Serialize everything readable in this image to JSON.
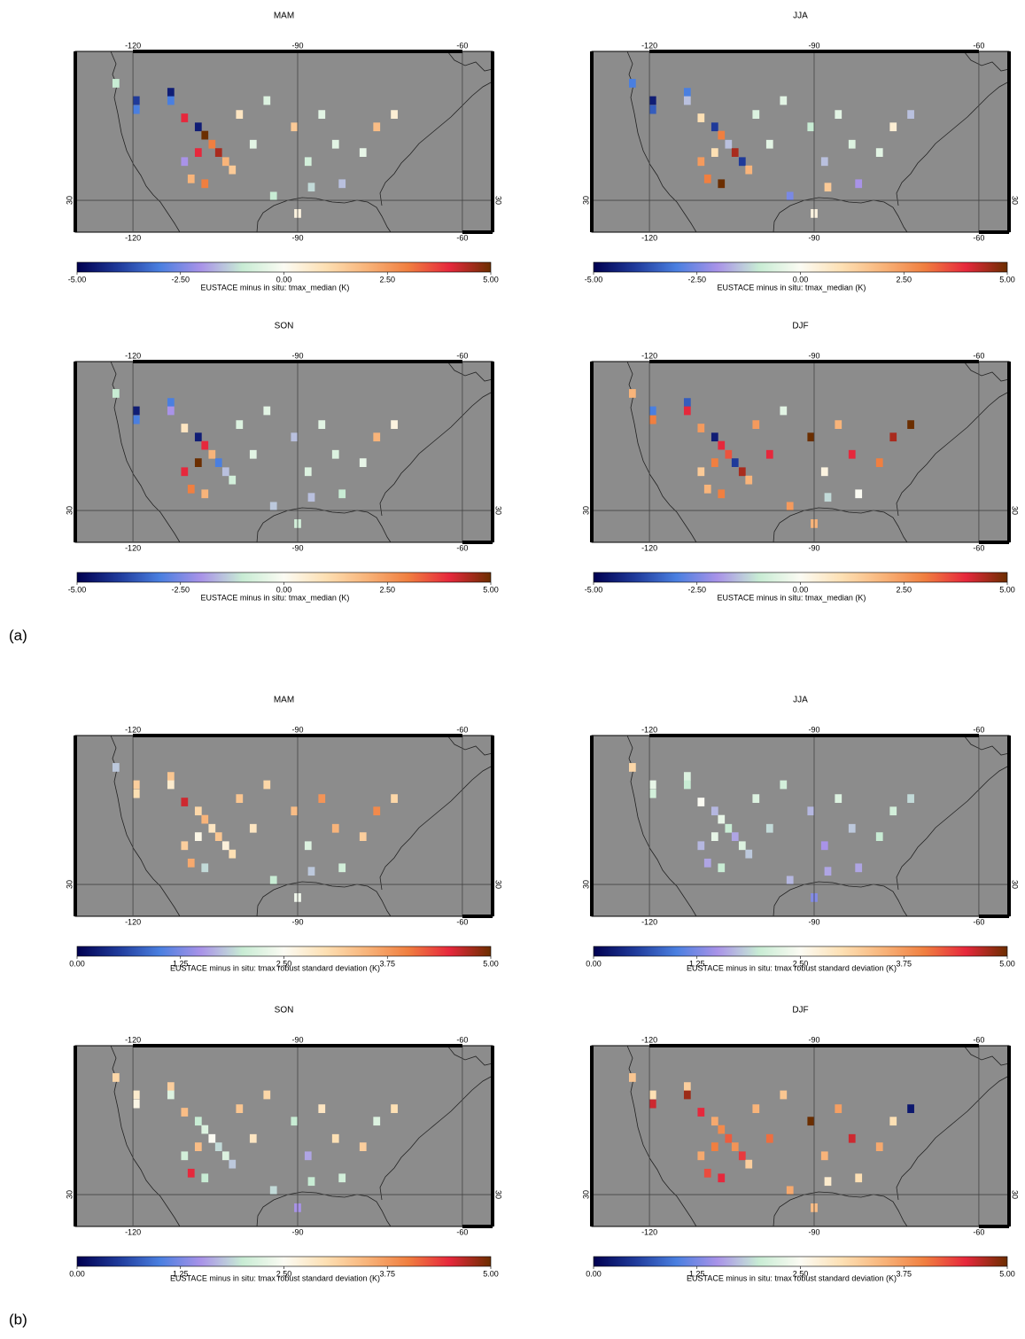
{
  "panel_labels": [
    "(a)",
    "(b)"
  ],
  "chart_data": [
    {
      "type": "grid_map",
      "title": "MAM",
      "colorbar_label": "EUSTACE minus in situ: tmax_median (K)",
      "xlim": [
        -130.5,
        -54.5
      ],
      "ylim": [
        25.4,
        51.5
      ],
      "xticks": [
        -120,
        -90,
        -60
      ],
      "yticks": [
        30
      ],
      "clim": [
        -5,
        5
      ],
      "cticks": [
        {
          "value": -5,
          "label": "-5.00"
        },
        {
          "value": -2.5,
          "label": "-2.50"
        },
        {
          "value": 0,
          "label": "0.00"
        },
        {
          "value": 2.5,
          "label": "2.50"
        },
        {
          "value": 5,
          "label": "5.00"
        }
      ],
      "colormap": [
        "#000050",
        "#1f3a9a",
        "#4a7fe0",
        "#a993e8",
        "#c8ecd4",
        "#fbfbf3",
        "#fde0b4",
        "#f8b47a",
        "#f07f40",
        "#e6283c",
        "#6b2e00"
      ],
      "x": [
        -123.1,
        -119.4,
        -119.4,
        -113.1,
        -113.1,
        -110.6,
        -108.1,
        -106.9,
        -105.6,
        -104.4,
        -103.1,
        -101.9,
        -108.1,
        -110.6,
        -109.4,
        -106.9,
        -100.6,
        -98.1,
        -95.6,
        -90.6,
        -88.1,
        -85.6,
        -83.1,
        -81.9,
        -78.1,
        -75.6,
        -72.4,
        -87.5,
        -90.0,
        -94.4
      ],
      "y": [
        46.9,
        44.4,
        43.1,
        45.6,
        44.4,
        41.9,
        40.6,
        39.4,
        38.1,
        36.9,
        35.6,
        34.4,
        36.9,
        35.6,
        33.1,
        32.4,
        42.4,
        38.1,
        44.4,
        40.6,
        35.6,
        42.4,
        38.1,
        32.4,
        36.9,
        40.6,
        42.4,
        31.9,
        28.1,
        30.6
      ],
      "values": [
        -1,
        -4,
        -3,
        -4.5,
        -3,
        4,
        -4.5,
        5,
        3,
        4.5,
        2,
        1.5,
        4,
        -2,
        2,
        3,
        0.8,
        -0.5,
        -0.6,
        1.5,
        -0.8,
        -0.5,
        -0.5,
        -1.5,
        -0.4,
        1.8,
        0.5,
        -1.2,
        0.3,
        -1
      ]
    },
    {
      "type": "grid_map",
      "title": "JJA",
      "colorbar_label": "EUSTACE minus in situ: tmax_median (K)",
      "xlim": [
        -130.5,
        -54.5
      ],
      "ylim": [
        25.4,
        51.5
      ],
      "xticks": [
        -120,
        -90,
        -60
      ],
      "yticks": [
        30
      ],
      "clim": [
        -5,
        5
      ],
      "cticks": [
        {
          "value": -5,
          "label": "-5.00"
        },
        {
          "value": -2.5,
          "label": "-2.50"
        },
        {
          "value": 0,
          "label": "0.00"
        },
        {
          "value": 2.5,
          "label": "2.50"
        },
        {
          "value": 5,
          "label": "5.00"
        }
      ],
      "colormap": [
        "#000050",
        "#1f3a9a",
        "#4a7fe0",
        "#a993e8",
        "#c8ecd4",
        "#fbfbf3",
        "#fde0b4",
        "#f8b47a",
        "#f07f40",
        "#e6283c",
        "#6b2e00"
      ],
      "x": [
        -123.1,
        -119.4,
        -119.4,
        -113.1,
        -113.1,
        -110.6,
        -108.1,
        -106.9,
        -105.6,
        -104.4,
        -103.1,
        -101.9,
        -108.1,
        -110.6,
        -109.4,
        -106.9,
        -100.6,
        -98.1,
        -95.6,
        -90.6,
        -88.1,
        -85.6,
        -83.1,
        -81.9,
        -78.1,
        -75.6,
        -72.4,
        -87.5,
        -90.0,
        -94.4
      ],
      "y": [
        46.9,
        44.4,
        43.1,
        45.6,
        44.4,
        41.9,
        40.6,
        39.4,
        38.1,
        36.9,
        35.6,
        34.4,
        36.9,
        35.6,
        33.1,
        32.4,
        42.4,
        38.1,
        44.4,
        40.6,
        35.6,
        42.4,
        38.1,
        32.4,
        36.9,
        40.6,
        42.4,
        31.9,
        28.1,
        30.6
      ],
      "values": [
        -3,
        -4.5,
        -3.5,
        -3,
        -1.5,
        1,
        -4,
        3,
        -1.5,
        4.5,
        -4,
        2,
        1,
        2.5,
        3,
        5,
        -0.6,
        -0.5,
        -0.5,
        -1,
        -1.5,
        -0.5,
        -0.6,
        -2,
        -0.5,
        0.5,
        -1.5,
        1.5,
        0.3,
        -2.5
      ]
    },
    {
      "type": "grid_map",
      "title": "SON",
      "colorbar_label": "EUSTACE minus in situ: tmax_median (K)",
      "xlim": [
        -130.5,
        -54.5
      ],
      "ylim": [
        25.4,
        51.5
      ],
      "xticks": [
        -120,
        -90,
        -60
      ],
      "yticks": [
        30
      ],
      "clim": [
        -5,
        5
      ],
      "cticks": [
        {
          "value": -5,
          "label": "-5.00"
        },
        {
          "value": -2.5,
          "label": "-2.50"
        },
        {
          "value": 0,
          "label": "0.00"
        },
        {
          "value": 2.5,
          "label": "2.50"
        },
        {
          "value": 5,
          "label": "5.00"
        }
      ],
      "colormap": [
        "#000050",
        "#1f3a9a",
        "#4a7fe0",
        "#a993e8",
        "#c8ecd4",
        "#fbfbf3",
        "#fde0b4",
        "#f8b47a",
        "#f07f40",
        "#e6283c",
        "#6b2e00"
      ],
      "x": [
        -123.1,
        -119.4,
        -119.4,
        -113.1,
        -113.1,
        -110.6,
        -108.1,
        -106.9,
        -105.6,
        -104.4,
        -103.1,
        -101.9,
        -108.1,
        -110.6,
        -109.4,
        -106.9,
        -100.6,
        -98.1,
        -95.6,
        -90.6,
        -88.1,
        -85.6,
        -83.1,
        -81.9,
        -78.1,
        -75.6,
        -72.4,
        -87.5,
        -90.0,
        -94.4
      ],
      "y": [
        46.9,
        44.4,
        43.1,
        45.6,
        44.4,
        41.9,
        40.6,
        39.4,
        38.1,
        36.9,
        35.6,
        34.4,
        36.9,
        35.6,
        33.1,
        32.4,
        42.4,
        38.1,
        44.4,
        40.6,
        35.6,
        42.4,
        38.1,
        32.4,
        36.9,
        40.6,
        42.4,
        31.9,
        28.1,
        30.6
      ],
      "values": [
        -1,
        -4.5,
        -3,
        -3,
        -2,
        0.8,
        -4.5,
        4,
        2,
        -3,
        -1.5,
        -0.8,
        5,
        4,
        3,
        2,
        -0.6,
        -0.5,
        -0.5,
        -1.5,
        -0.6,
        -0.5,
        -0.6,
        -1,
        -0.4,
        2,
        0.3,
        -1.5,
        -0.8,
        -1.4
      ]
    },
    {
      "type": "grid_map",
      "title": "DJF",
      "colorbar_label": "EUSTACE minus in situ: tmax_median (K)",
      "xlim": [
        -130.5,
        -54.5
      ],
      "ylim": [
        25.4,
        51.5
      ],
      "xticks": [
        -120,
        -90,
        -60
      ],
      "yticks": [
        30
      ],
      "clim": [
        -5,
        5
      ],
      "cticks": [
        {
          "value": -5,
          "label": "-5.00"
        },
        {
          "value": -2.5,
          "label": "-2.50"
        },
        {
          "value": 0,
          "label": "0.00"
        },
        {
          "value": 2.5,
          "label": "2.50"
        },
        {
          "value": 5,
          "label": "5.00"
        }
      ],
      "colormap": [
        "#000050",
        "#1f3a9a",
        "#4a7fe0",
        "#a993e8",
        "#c8ecd4",
        "#fbfbf3",
        "#fde0b4",
        "#f8b47a",
        "#f07f40",
        "#e6283c",
        "#6b2e00"
      ],
      "x": [
        -123.1,
        -119.4,
        -119.4,
        -113.1,
        -113.1,
        -110.6,
        -108.1,
        -106.9,
        -105.6,
        -104.4,
        -103.1,
        -101.9,
        -108.1,
        -110.6,
        -109.4,
        -106.9,
        -100.6,
        -98.1,
        -95.6,
        -90.6,
        -88.1,
        -85.6,
        -83.1,
        -81.9,
        -78.1,
        -75.6,
        -72.4,
        -87.5,
        -90.0,
        -94.4
      ],
      "y": [
        46.9,
        44.4,
        43.1,
        45.6,
        44.4,
        41.9,
        40.6,
        39.4,
        38.1,
        36.9,
        35.6,
        34.4,
        36.9,
        35.6,
        33.1,
        32.4,
        42.4,
        38.1,
        44.4,
        40.6,
        35.6,
        42.4,
        38.1,
        32.4,
        36.9,
        40.6,
        42.4,
        31.9,
        28.1,
        30.6
      ],
      "values": [
        2,
        -3,
        3,
        -3.5,
        4,
        2.5,
        -4.5,
        4,
        3.5,
        -4,
        4.5,
        2,
        3,
        1.5,
        2,
        3,
        2.5,
        4,
        -0.5,
        5,
        0.3,
        2,
        4,
        0,
        3,
        4.5,
        5,
        -1.2,
        2,
        2.5
      ]
    },
    {
      "type": "grid_map",
      "title": "MAM",
      "colorbar_label": "EUSTACE minus in situ: tmax robust standard deviation (K)",
      "xlim": [
        -130.5,
        -54.5
      ],
      "ylim": [
        25.4,
        51.5
      ],
      "xticks": [
        -120,
        -90,
        -60
      ],
      "yticks": [
        30
      ],
      "clim": [
        0,
        5
      ],
      "cticks": [
        {
          "value": 0,
          "label": "0.00"
        },
        {
          "value": 1.25,
          "label": "1.25"
        },
        {
          "value": 2.5,
          "label": "2.50"
        },
        {
          "value": 3.75,
          "label": "3.75"
        },
        {
          "value": 5,
          "label": "5.00"
        }
      ],
      "colormap": [
        "#000050",
        "#1f3a9a",
        "#4a7fe0",
        "#a993e8",
        "#c8ecd4",
        "#fbfbf3",
        "#fde0b4",
        "#f8b47a",
        "#f07f40",
        "#e6283c",
        "#6b2e00"
      ],
      "x": [
        -123.1,
        -119.4,
        -119.4,
        -113.1,
        -113.1,
        -110.6,
        -108.1,
        -106.9,
        -105.6,
        -104.4,
        -103.1,
        -101.9,
        -108.1,
        -110.6,
        -109.4,
        -106.9,
        -100.6,
        -98.1,
        -95.6,
        -90.6,
        -88.1,
        -85.6,
        -83.1,
        -81.9,
        -78.1,
        -75.6,
        -72.4,
        -87.5,
        -90.0,
        -94.4
      ],
      "y": [
        46.9,
        44.4,
        43.1,
        45.6,
        44.4,
        41.9,
        40.6,
        39.4,
        38.1,
        36.9,
        35.6,
        34.4,
        36.9,
        35.6,
        33.1,
        32.4,
        42.4,
        38.1,
        44.4,
        40.6,
        35.6,
        42.4,
        38.1,
        32.4,
        36.9,
        40.6,
        42.4,
        31.9,
        28.1,
        30.6
      ],
      "values": [
        1.8,
        3.2,
        3.0,
        3.3,
        2.8,
        4.6,
        3.1,
        3.5,
        2.9,
        3.3,
        2.7,
        3.0,
        2.6,
        3.2,
        3.6,
        1.9,
        3.3,
        2.9,
        3.1,
        3.4,
        2.2,
        3.8,
        3.5,
        2.1,
        3.2,
        3.9,
        3.1,
        1.8,
        2.4,
        2.0
      ]
    },
    {
      "type": "grid_map",
      "title": "JJA",
      "colorbar_label": "EUSTACE minus in situ: tmax robust standard deviation (K)",
      "xlim": [
        -130.5,
        -54.5
      ],
      "ylim": [
        25.4,
        51.5
      ],
      "xticks": [
        -120,
        -90,
        -60
      ],
      "yticks": [
        30
      ],
      "clim": [
        0,
        5
      ],
      "cticks": [
        {
          "value": 0,
          "label": "0.00"
        },
        {
          "value": 1.25,
          "label": "1.25"
        },
        {
          "value": 2.5,
          "label": "2.50"
        },
        {
          "value": 3.75,
          "label": "3.75"
        },
        {
          "value": 5,
          "label": "5.00"
        }
      ],
      "colormap": [
        "#000050",
        "#1f3a9a",
        "#4a7fe0",
        "#a993e8",
        "#c8ecd4",
        "#fbfbf3",
        "#fde0b4",
        "#f8b47a",
        "#f07f40",
        "#e6283c",
        "#6b2e00"
      ],
      "x": [
        -123.1,
        -119.4,
        -119.4,
        -113.1,
        -113.1,
        -110.6,
        -108.1,
        -106.9,
        -105.6,
        -104.4,
        -103.1,
        -101.9,
        -108.1,
        -110.6,
        -109.4,
        -106.9,
        -100.6,
        -98.1,
        -95.6,
        -90.6,
        -88.1,
        -85.6,
        -83.1,
        -81.9,
        -78.1,
        -75.6,
        -72.4,
        -87.5,
        -90.0,
        -94.4
      ],
      "y": [
        46.9,
        44.4,
        43.1,
        45.6,
        44.4,
        41.9,
        40.6,
        39.4,
        38.1,
        36.9,
        35.6,
        34.4,
        36.9,
        35.6,
        33.1,
        32.4,
        42.4,
        38.1,
        44.4,
        40.6,
        35.6,
        42.4,
        38.1,
        32.4,
        36.9,
        40.6,
        42.4,
        31.9,
        28.1,
        30.6
      ],
      "values": [
        3.1,
        2.3,
        2.1,
        2.2,
        2.0,
        2.5,
        1.7,
        2.3,
        2.0,
        1.6,
        2.2,
        1.8,
        2.3,
        1.7,
        1.6,
        2.0,
        2.2,
        1.9,
        2.1,
        1.7,
        1.5,
        2.2,
        1.8,
        1.6,
        2.0,
        2.1,
        1.9,
        1.6,
        1.3,
        1.7
      ]
    },
    {
      "type": "grid_map",
      "title": "SON",
      "colorbar_label": "EUSTACE minus in situ: tmax robust standard deviation (K)",
      "xlim": [
        -130.5,
        -54.5
      ],
      "ylim": [
        25.4,
        51.5
      ],
      "xticks": [
        -120,
        -90,
        -60
      ],
      "yticks": [
        30
      ],
      "clim": [
        0,
        5
      ],
      "cticks": [
        {
          "value": 0,
          "label": "0.00"
        },
        {
          "value": 1.25,
          "label": "1.25"
        },
        {
          "value": 2.5,
          "label": "2.50"
        },
        {
          "value": 3.75,
          "label": "3.75"
        },
        {
          "value": 5,
          "label": "5.00"
        }
      ],
      "colormap": [
        "#000050",
        "#1f3a9a",
        "#4a7fe0",
        "#a993e8",
        "#c8ecd4",
        "#fbfbf3",
        "#fde0b4",
        "#f8b47a",
        "#f07f40",
        "#e6283c",
        "#6b2e00"
      ],
      "x": [
        -123.1,
        -119.4,
        -119.4,
        -113.1,
        -113.1,
        -110.6,
        -108.1,
        -106.9,
        -105.6,
        -104.4,
        -103.1,
        -101.9,
        -108.1,
        -110.6,
        -109.4,
        -106.9,
        -100.6,
        -98.1,
        -95.6,
        -90.6,
        -88.1,
        -85.6,
        -83.1,
        -81.9,
        -78.1,
        -75.6,
        -72.4,
        -87.5,
        -90.0,
        -94.4
      ],
      "y": [
        46.9,
        44.4,
        43.1,
        45.6,
        44.4,
        41.9,
        40.6,
        39.4,
        38.1,
        36.9,
        35.6,
        34.4,
        36.9,
        35.6,
        33.1,
        32.4,
        42.4,
        38.1,
        44.4,
        40.6,
        35.6,
        42.4,
        38.1,
        32.4,
        36.9,
        40.6,
        42.4,
        31.9,
        28.1,
        30.6
      ],
      "values": [
        3.1,
        2.8,
        2.6,
        3.2,
        2.2,
        3.4,
        2.0,
        2.2,
        2.5,
        1.9,
        2.2,
        1.8,
        3.4,
        2.1,
        4.5,
        2.0,
        3.3,
        2.9,
        3.1,
        2.0,
        1.6,
        2.9,
        3.0,
        2.1,
        3.2,
        2.2,
        3.0,
        2.0,
        1.5,
        1.9
      ]
    },
    {
      "type": "grid_map",
      "title": "DJF",
      "colorbar_label": "EUSTACE minus in situ: tmax robust standard deviation (K)",
      "xlim": [
        -130.5,
        -54.5
      ],
      "ylim": [
        25.4,
        51.5
      ],
      "xticks": [
        -120,
        -90,
        -60
      ],
      "yticks": [
        30
      ],
      "clim": [
        0,
        5
      ],
      "cticks": [
        {
          "value": 0,
          "label": "0.00"
        },
        {
          "value": 1.25,
          "label": "1.25"
        },
        {
          "value": 2.5,
          "label": "2.50"
        },
        {
          "value": 3.75,
          "label": "3.75"
        },
        {
          "value": 5,
          "label": "5.00"
        }
      ],
      "colormap": [
        "#000050",
        "#1f3a9a",
        "#4a7fe0",
        "#a993e8",
        "#c8ecd4",
        "#fbfbf3",
        "#fde0b4",
        "#f8b47a",
        "#f07f40",
        "#e6283c",
        "#6b2e00"
      ],
      "x": [
        -123.1,
        -119.4,
        -119.4,
        -113.1,
        -113.1,
        -110.6,
        -108.1,
        -106.9,
        -105.6,
        -104.4,
        -103.1,
        -101.9,
        -108.1,
        -110.6,
        -109.4,
        -106.9,
        -100.6,
        -98.1,
        -95.6,
        -90.6,
        -88.1,
        -85.6,
        -83.1,
        -81.9,
        -78.1,
        -75.6,
        -72.4,
        -87.5,
        -90.0,
        -94.4
      ],
      "y": [
        46.9,
        44.4,
        43.1,
        45.6,
        44.4,
        41.9,
        40.6,
        39.4,
        38.1,
        36.9,
        35.6,
        34.4,
        36.9,
        35.6,
        33.1,
        32.4,
        42.4,
        38.1,
        44.4,
        40.6,
        35.6,
        42.4,
        38.1,
        32.4,
        36.9,
        40.6,
        42.4,
        31.9,
        28.1,
        30.6
      ],
      "values": [
        3.3,
        3.0,
        4.6,
        3.2,
        4.8,
        4.5,
        3.6,
        3.9,
        4.2,
        3.8,
        4.4,
        3.2,
        4.0,
        3.6,
        4.3,
        4.5,
        3.5,
        4.1,
        3.3,
        5.0,
        3.5,
        3.7,
        4.6,
        3.0,
        3.6,
        3.0,
        0.2,
        2.8,
        3.4,
        3.6
      ]
    }
  ]
}
